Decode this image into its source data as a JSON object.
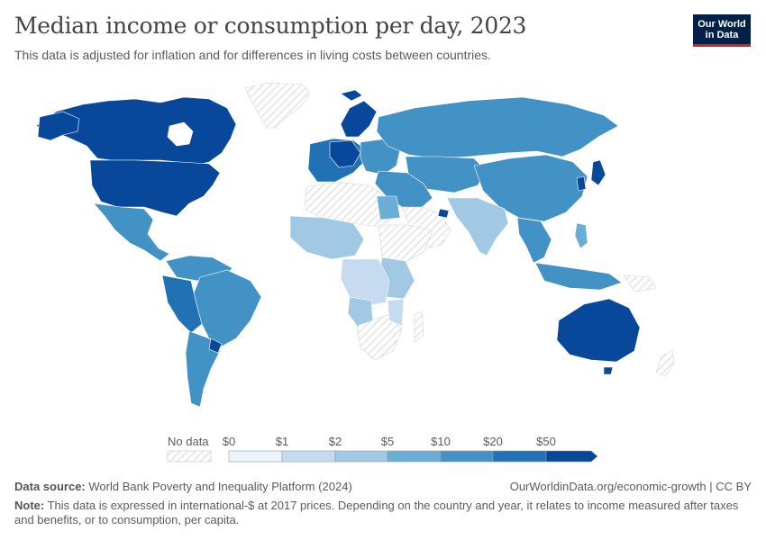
{
  "header": {
    "title": "Median income or consumption per day, 2023",
    "subtitle": "This data is adjusted for inflation and for differences in living costs between countries.",
    "logo_line1": "Our World",
    "logo_line2": "in Data"
  },
  "colors": {
    "no_data_stroke": "#cfcfcf",
    "bin0": "#eef4fc",
    "bin1": "#c6dbef",
    "bin2": "#a1c9e3",
    "bin3": "#6aaed6",
    "bin4": "#4292c6",
    "bin5": "#2171b5",
    "bin6": "#08489a"
  },
  "legend": {
    "no_data_label": "No data",
    "ticks": [
      "$0",
      "$1",
      "$2",
      "$5",
      "$10",
      "$20",
      "$50"
    ]
  },
  "footer": {
    "source_label": "Data source:",
    "source_text": "World Bank Poverty and Inequality Platform (2024)",
    "url_text": "OurWorldinData.org/economic-growth | CC BY",
    "note_label": "Note:",
    "note_text": "This data is expressed in international-$ at 2017 prices. Depending on the country and year, it relates to income measured after taxes and benefits, or to consumption, per capita."
  }
}
